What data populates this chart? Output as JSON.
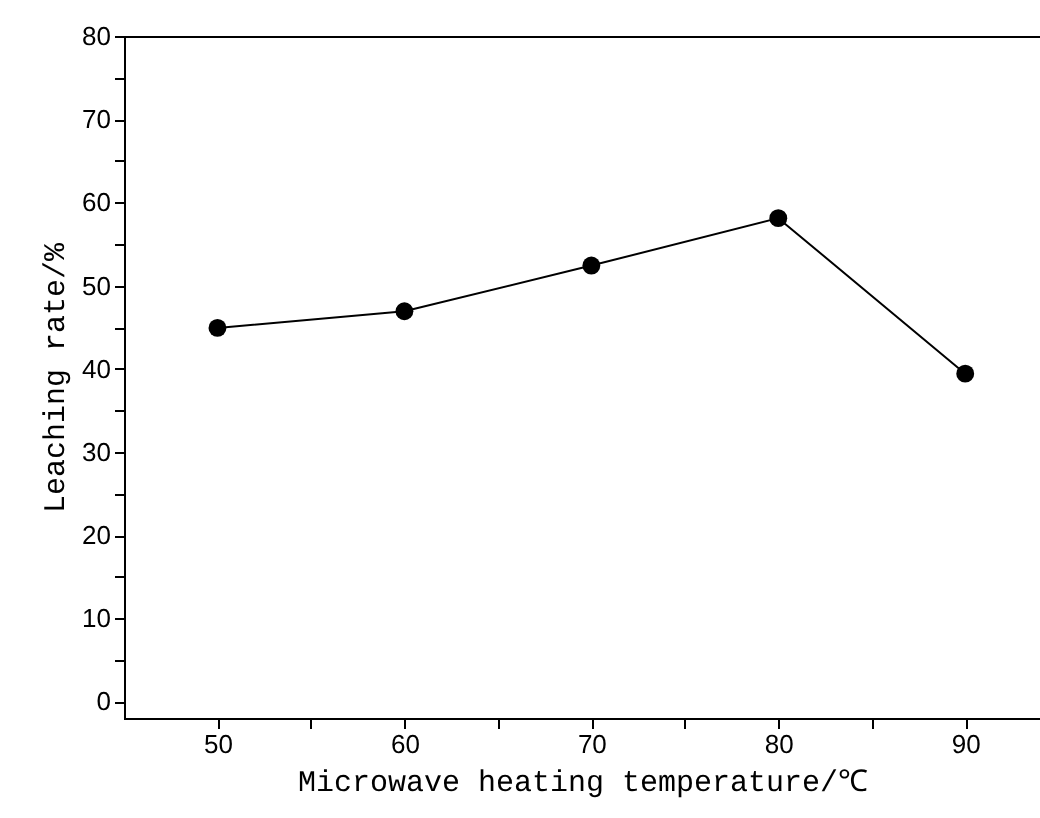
{
  "chart_data": {
    "type": "line",
    "xlabel": "Microwave heating temperature/℃",
    "ylabel": "Leaching rate/%",
    "x": [
      50,
      60,
      70,
      80,
      90
    ],
    "series": [
      {
        "color": "#000000",
        "values": [
          44.9,
          46.9,
          52.4,
          58.1,
          39.4
        ]
      }
    ],
    "xlim": [
      45,
      94
    ],
    "ylim": [
      -2,
      80
    ],
    "xticks": [
      50,
      {
        "value": 55,
        "label": null
      },
      60,
      {
        "value": 65,
        "label": null
      },
      70,
      {
        "value": 75,
        "label": null
      },
      80,
      {
        "value": 85,
        "label": null
      },
      90
    ],
    "yticks": [
      0,
      {
        "value": 5,
        "label": null
      },
      10,
      {
        "value": 15,
        "label": null
      },
      20,
      {
        "value": 25,
        "label": null
      },
      30,
      {
        "value": 35,
        "label": null
      },
      40,
      {
        "value": 45,
        "label": null
      },
      50,
      {
        "value": 55,
        "label": null
      },
      60,
      {
        "value": 65,
        "label": null
      },
      70,
      {
        "value": 75,
        "label": null
      },
      80
    ],
    "marker": "circle",
    "line_style": "solid"
  }
}
